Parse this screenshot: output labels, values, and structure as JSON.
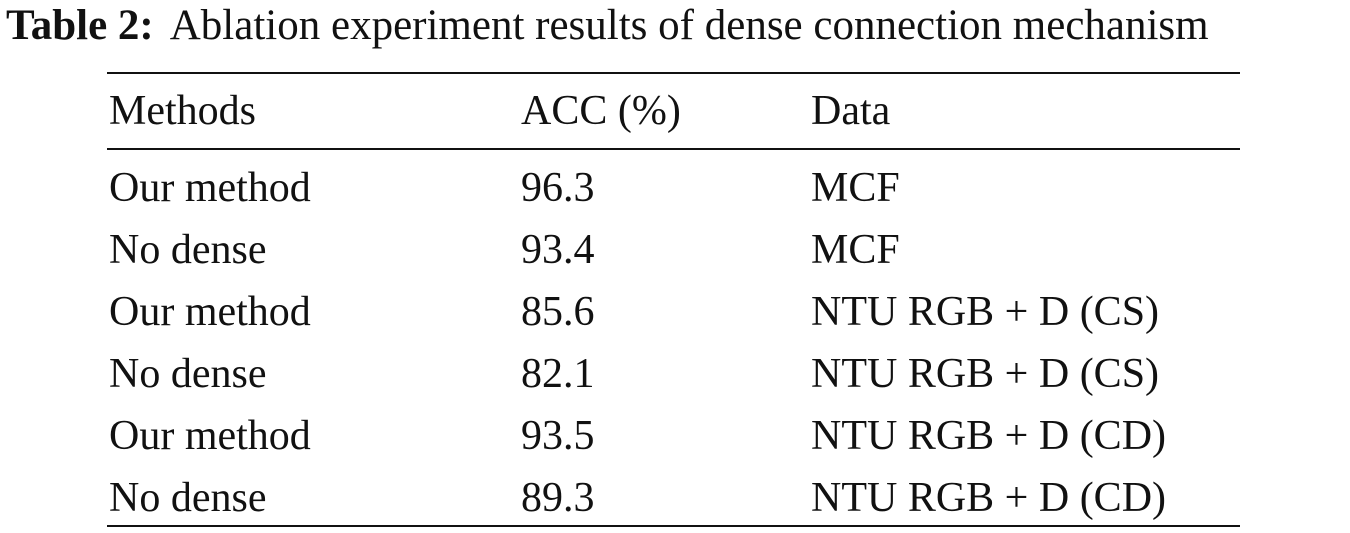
{
  "caption": {
    "label": "Table 2:",
    "text": "Ablation experiment results of dense connection mechanism"
  },
  "table": {
    "headers": [
      "Methods",
      "ACC (%)",
      "Data"
    ],
    "rows": [
      [
        "Our method",
        "96.3",
        "MCF"
      ],
      [
        "No dense",
        "93.4",
        "MCF"
      ],
      [
        "Our method",
        "85.6",
        "NTU RGB + D (CS)"
      ],
      [
        "No dense",
        "82.1",
        "NTU RGB + D (CS)"
      ],
      [
        "Our method",
        "93.5",
        "NTU RGB + D (CD)"
      ],
      [
        "No dense",
        "89.3",
        "NTU RGB + D (CD)"
      ]
    ]
  }
}
